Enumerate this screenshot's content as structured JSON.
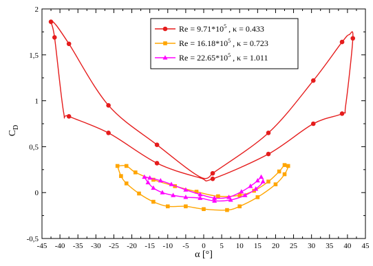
{
  "chart_data": {
    "type": "line",
    "xlabel": "α [°]",
    "ylabel": "C_D",
    "xlim": [
      -45,
      45
    ],
    "ylim": [
      -0.5,
      2
    ],
    "x_ticks": [
      -45,
      -40,
      -35,
      -30,
      -25,
      -20,
      -15,
      -10,
      -5,
      0,
      5,
      10,
      15,
      20,
      25,
      30,
      35,
      40,
      45
    ],
    "y_ticks": [
      -0.5,
      0,
      0.5,
      1,
      1.5,
      2
    ],
    "y_tick_labels": [
      "-0,5",
      "0",
      "0,5",
      "1",
      "1,5",
      "2"
    ],
    "grid": false,
    "legend_position": "top-center",
    "series": [
      {
        "legend": {
          "re_base": "9.71*10",
          "re_exp": "5",
          "kappa": "0.433"
        },
        "color": "#e51c1c",
        "marker": "circle",
        "points": [
          [
            2.5,
            0.21
          ],
          [
            18,
            0.65
          ],
          [
            30.5,
            1.22
          ],
          [
            38.5,
            1.64
          ],
          [
            40.5,
            1.72
          ],
          [
            41.5,
            1.68
          ],
          [
            39.5,
            0.95
          ],
          [
            38.5,
            0.86
          ],
          [
            30.5,
            0.75
          ],
          [
            18,
            0.42
          ],
          [
            2.5,
            0.15
          ],
          [
            -1,
            0.16
          ],
          [
            -13,
            0.32
          ],
          [
            -26.5,
            0.65
          ],
          [
            -37.5,
            0.83
          ],
          [
            -39,
            0.88
          ],
          [
            -41.5,
            1.69
          ],
          [
            -42.5,
            1.86
          ],
          [
            -41,
            1.82
          ],
          [
            -37.5,
            1.62
          ],
          [
            -26.5,
            0.95
          ],
          [
            -13,
            0.52
          ],
          [
            -1,
            0.17
          ],
          [
            2.5,
            0.21
          ]
        ],
        "marker_points": [
          [
            2.5,
            0.21
          ],
          [
            18,
            0.65
          ],
          [
            30.5,
            1.22
          ],
          [
            38.5,
            1.64
          ],
          [
            41.5,
            1.68
          ],
          [
            38.5,
            0.86
          ],
          [
            30.5,
            0.75
          ],
          [
            18,
            0.42
          ],
          [
            2.5,
            0.15
          ],
          [
            -13,
            0.32
          ],
          [
            -26.5,
            0.65
          ],
          [
            -37.5,
            0.83
          ],
          [
            -41.5,
            1.69
          ],
          [
            -42.5,
            1.86
          ],
          [
            -37.5,
            1.62
          ],
          [
            -26.5,
            0.95
          ],
          [
            -13,
            0.52
          ]
        ]
      },
      {
        "legend": {
          "re_base": "16.18*10",
          "re_exp": "5",
          "kappa": "0.723"
        },
        "color": "#ffa500",
        "marker": "square",
        "points": [
          [
            -24,
            0.29
          ],
          [
            -21.5,
            0.29
          ],
          [
            -19,
            0.22
          ],
          [
            -14,
            0.14
          ],
          [
            -8,
            0.07
          ],
          [
            -2,
            0.01
          ],
          [
            4,
            -0.04
          ],
          [
            10,
            -0.03
          ],
          [
            14,
            0.02
          ],
          [
            18,
            0.12
          ],
          [
            21,
            0.23
          ],
          [
            22.5,
            0.3
          ],
          [
            23.5,
            0.29
          ],
          [
            22.5,
            0.2
          ],
          [
            20,
            0.09
          ],
          [
            15,
            -0.05
          ],
          [
            10,
            -0.15
          ],
          [
            6.5,
            -0.19
          ],
          [
            0,
            -0.18
          ],
          [
            -5,
            -0.15
          ],
          [
            -10,
            -0.15
          ],
          [
            -14,
            -0.1
          ],
          [
            -18,
            -0.01
          ],
          [
            -21.5,
            0.1
          ],
          [
            -23,
            0.18
          ],
          [
            -24,
            0.29
          ]
        ]
      },
      {
        "legend": {
          "re_base": "22.65*10",
          "re_exp": "5",
          "kappa": "1.011"
        },
        "color": "#ff00ff",
        "marker": "triangle",
        "points": [
          [
            -16.5,
            0.17
          ],
          [
            -15,
            0.16
          ],
          [
            -12,
            0.13
          ],
          [
            -9,
            0.09
          ],
          [
            -5,
            0.03
          ],
          [
            -1,
            -0.02
          ],
          [
            3,
            -0.06
          ],
          [
            7,
            -0.05
          ],
          [
            10.5,
            0.01
          ],
          [
            13,
            0.07
          ],
          [
            15,
            0.13
          ],
          [
            16,
            0.17
          ],
          [
            16.5,
            0.12
          ],
          [
            14.5,
            0.04
          ],
          [
            11.5,
            -0.03
          ],
          [
            7.5,
            -0.08
          ],
          [
            3,
            -0.09
          ],
          [
            -1,
            -0.06
          ],
          [
            -5,
            -0.05
          ],
          [
            -8.5,
            -0.03
          ],
          [
            -11.5,
            0.0
          ],
          [
            -14,
            0.05
          ],
          [
            -15.5,
            0.11
          ],
          [
            -16.5,
            0.17
          ]
        ]
      }
    ]
  }
}
